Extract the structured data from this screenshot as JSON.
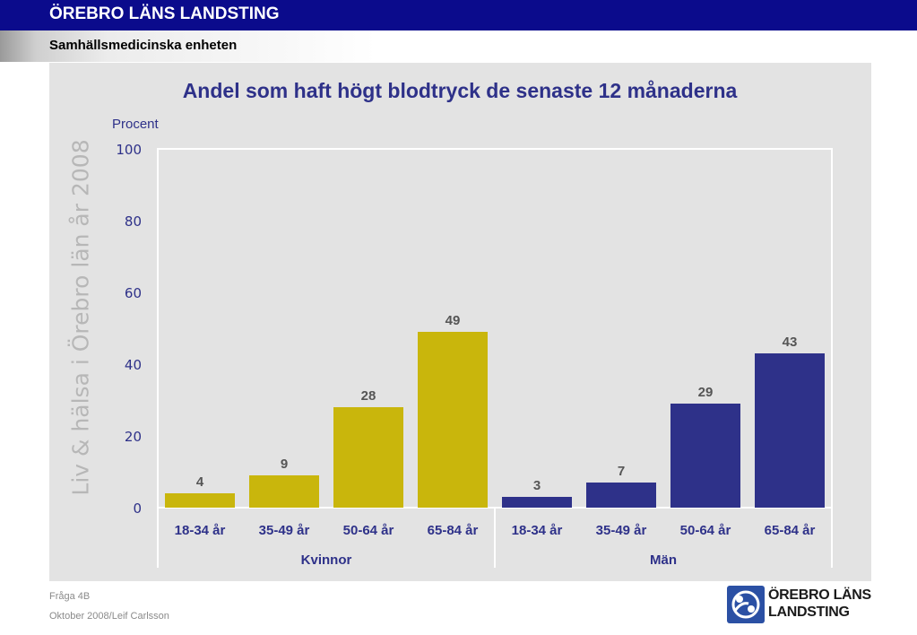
{
  "header": {
    "title": "ÖREBRO LÄNS LANDSTING",
    "subtitle": "Samhällsmedicinska enheten"
  },
  "watermark": "Liv & hälsa i Örebro län år 2008",
  "footer": {
    "question": "Fråga 4B",
    "date_author": "Oktober 2008/Leif Carlsson"
  },
  "logo": {
    "line1": "ÖREBRO LÄNS",
    "line2": "LANDSTING",
    "icon": "people-circle-logo-icon"
  },
  "chart_data": {
    "type": "bar",
    "title": "Andel som haft högt blodtryck de senaste 12 månaderna",
    "ylabel": "Procent",
    "xlabel": "",
    "ylim": [
      0,
      100
    ],
    "yticks": [
      0,
      20,
      40,
      60,
      80,
      100
    ],
    "grid": false,
    "legend": "none",
    "categories": [
      "18-34 år",
      "35-49 år",
      "50-64 år",
      "65-84 år",
      "18-34 år",
      "35-49 år",
      "50-64 år",
      "65-84 år"
    ],
    "groups": [
      {
        "name": "Kvinnor",
        "color": "#c9b60c",
        "values": [
          4,
          9,
          28,
          49
        ]
      },
      {
        "name": "Män",
        "color": "#2e3189",
        "values": [
          3,
          7,
          29,
          43
        ]
      }
    ]
  }
}
